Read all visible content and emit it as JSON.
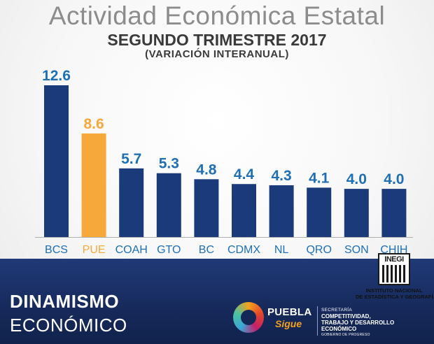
{
  "header": {
    "title": "Actividad Económica Estatal",
    "subtitle": "SEGUNDO TRIMESTRE 2017",
    "subtitle2": "(VARIACIÓN INTERANUAL)"
  },
  "chart_data": {
    "type": "bar",
    "title": "Actividad Económica Estatal",
    "subtitle": "SEGUNDO TRIMESTRE 2017 (VARIACIÓN INTERANUAL)",
    "categories": [
      "BCS",
      "PUE",
      "COAH",
      "GTO",
      "BC",
      "CDMX",
      "NL",
      "QRO",
      "SON",
      "CHIH"
    ],
    "values": [
      12.6,
      8.6,
      5.7,
      5.3,
      4.8,
      4.4,
      4.3,
      4.1,
      4.0,
      4.0
    ],
    "data_labels": [
      "12.6",
      "8.6",
      "5.7",
      "5.3",
      "4.8",
      "4.4",
      "4.3",
      "4.1",
      "4.0",
      "4.0"
    ],
    "highlight_category": "PUE",
    "ylim": [
      0,
      12.6
    ],
    "grid": false,
    "legend": "none",
    "colors": {
      "bar": "#1a3a7a",
      "highlight": "#f6a83b",
      "label": "#1f6fb5",
      "baseline": "#b0b0b0"
    }
  },
  "footer": {
    "line1": "DINAMISMO",
    "line2": "ECONÓMICO"
  },
  "inegi": {
    "logo": "INEGI",
    "line1": "INSTITUTO NACIONAL",
    "line2": "DE ESTADÍSTICA Y GEOGRAFÍA"
  },
  "puebla": {
    "word1": "PUEBLA",
    "word2": "Sigue",
    "sec_line1": "SECRETARÍA",
    "sec_line2": "COMPETITIVIDAD,",
    "sec_line3": "TRABAJO Y DESARROLLO",
    "sec_line4": "ECONÓMICO",
    "sec_line5": "GOBIERNO DE PROGRESO"
  }
}
